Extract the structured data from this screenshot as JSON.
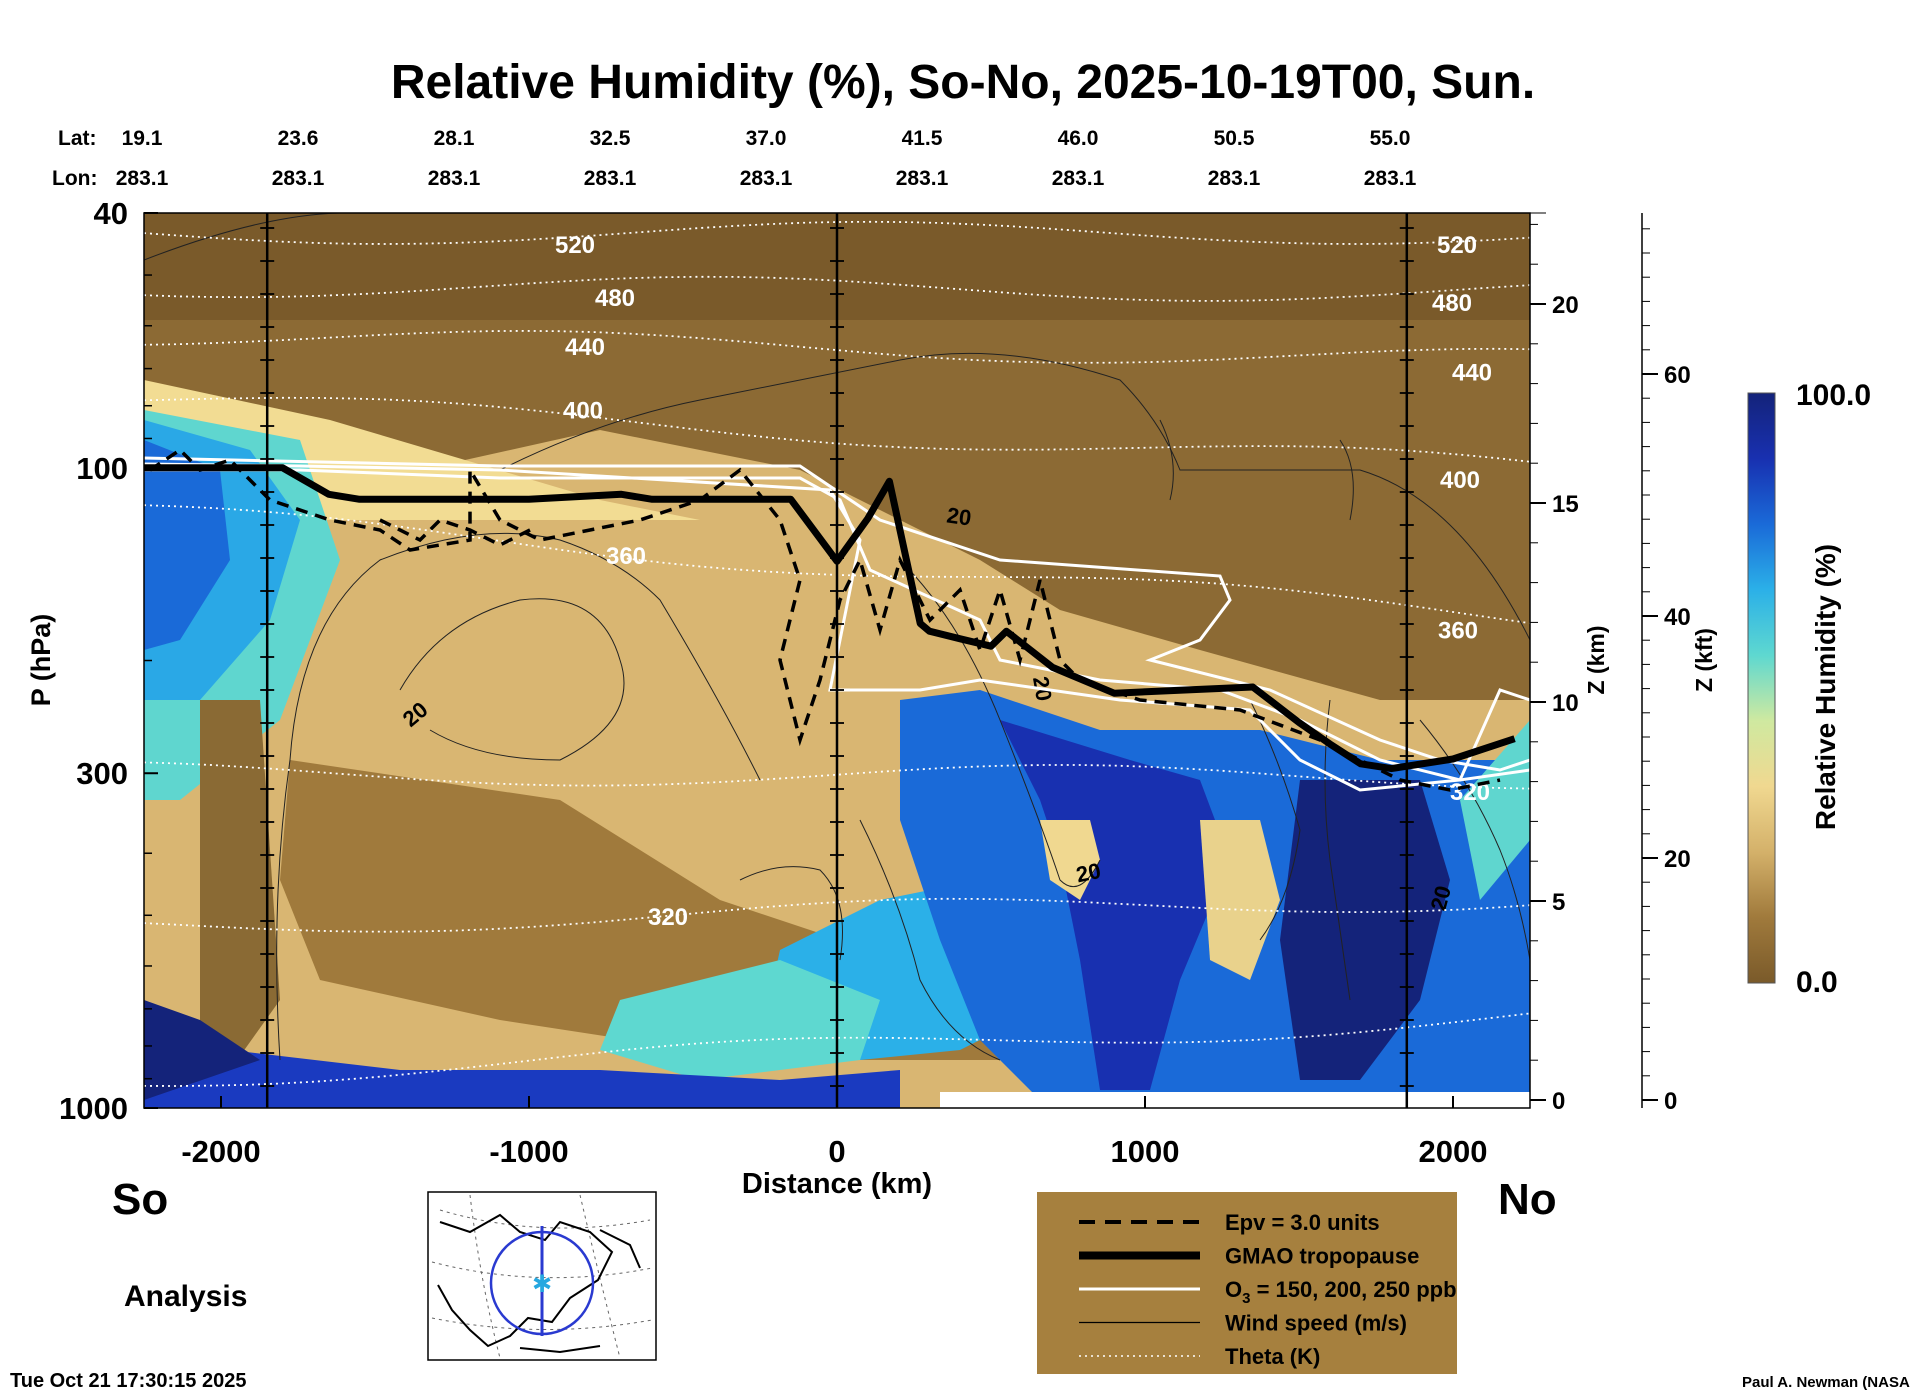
{
  "chart_data": {
    "type": "heatmap",
    "title": "Relative Humidity (%), So-No, 2025-10-19T00, Sun.",
    "xlabel": "Distance (km)",
    "ylabel": "P (hPa)",
    "xlim": [
      -2250,
      2250
    ],
    "x_ticks": [
      -2000,
      -1000,
      0,
      1000,
      2000
    ],
    "x_tick_labels": [
      "-2000",
      "-1000",
      "0",
      "1000",
      "2000"
    ],
    "y_scale": "log",
    "ylim": [
      1000,
      40
    ],
    "y_ticks": [
      40,
      100,
      300,
      1000
    ],
    "y_tick_labels": [
      "40",
      "100",
      "300",
      "1000"
    ],
    "z_km_label": "Z (km)",
    "z_km_ticks": [
      "0",
      "5",
      "10",
      "15",
      "20"
    ],
    "z_kft_label": "Z (kft)",
    "z_kft_ticks": [
      "0",
      "20",
      "40",
      "60"
    ],
    "end_labels": {
      "left": "So",
      "right": "No"
    },
    "lat_label": "Lat:",
    "lon_label": "Lon:",
    "lat_values": [
      "19.1",
      "23.6",
      "28.1",
      "32.5",
      "37.0",
      "41.5",
      "46.0",
      "50.5",
      "55.0"
    ],
    "lon_values": [
      "283.1",
      "283.1",
      "283.1",
      "283.1",
      "283.1",
      "283.1",
      "283.1",
      "283.1",
      "283.1"
    ],
    "colorbar": {
      "label": "Relative Humidity (%)",
      "min": "0.0",
      "max": "100.0",
      "colors": [
        "#7a5a2a",
        "#a07a3c",
        "#d4b16a",
        "#f0d890",
        "#cfe9a0",
        "#5ed8d0",
        "#2bb0e8",
        "#1a6ad8",
        "#1830b0",
        "#14237a"
      ]
    },
    "theta_contours": [
      {
        "value": 520,
        "label": "520",
        "p_left": 43,
        "p_right": 43
      },
      {
        "value": 480,
        "label": "480",
        "p_left": 52,
        "p_right": 53
      },
      {
        "value": 440,
        "label": "440",
        "p_left": 62,
        "p_right": 68
      },
      {
        "value": 400,
        "label": "400",
        "p_left": 78,
        "p_right": 100
      },
      {
        "value": 360,
        "label": "360",
        "p_left": 118,
        "p_right": 172
      },
      {
        "value": 320,
        "label": "320",
        "p_left": 300,
        "p_right": 305
      },
      {
        "value": 300,
        "label": "",
        "p_left": 520,
        "p_right": 470
      },
      {
        "value": 290,
        "label": "",
        "p_left": 900,
        "p_right": 720
      }
    ],
    "tropopause": {
      "x": [
        -2250,
        -1900,
        -1800,
        -1650,
        -1550,
        -1000,
        -700,
        -600,
        -150,
        0,
        100,
        170,
        270,
        300,
        400,
        500,
        550,
        700,
        900,
        1350,
        1500,
        1600,
        1700,
        1800,
        2000,
        2200
      ],
      "p": [
        100,
        100,
        100,
        110,
        112,
        112,
        110,
        112,
        112,
        140,
        120,
        105,
        175,
        180,
        185,
        190,
        180,
        205,
        225,
        220,
        250,
        270,
        290,
        295,
        285,
        265
      ]
    },
    "wind_label": "20",
    "markers_km": [
      -1850,
      0,
      1850
    ],
    "annotations": [
      "Analysis",
      "Tue Oct 21 17:30:15 2025",
      "Paul A. Newman (NASA"
    ],
    "legend": [
      {
        "style": "dashed",
        "label": "Epv = 3.0 units"
      },
      {
        "style": "thick",
        "label": "GMAO tropopause"
      },
      {
        "style": "white",
        "label": "O",
        "sub": "3",
        "label_rest": " = 150, 200, 250 ppb"
      },
      {
        "style": "thin",
        "label": "Wind speed (m/s)"
      },
      {
        "style": "dotted",
        "label": "Theta (K)"
      }
    ]
  }
}
